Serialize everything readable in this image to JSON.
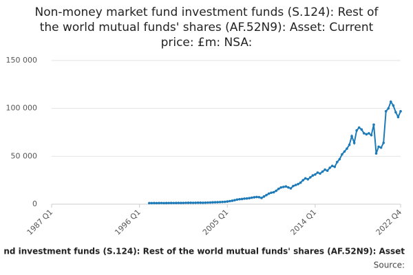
{
  "chart_data": {
    "type": "line",
    "title": [
      "Non-money market fund investment funds (S.124): Rest of",
      "the world mutual funds' shares (AF.52N9): Asset: Current",
      "price: £m: NSA:"
    ],
    "caption": "nd investment funds (S.124): Rest of the world mutual funds' shares (AF.52N9): Asset",
    "source": "Source:",
    "categories": [
      "1987 Q1",
      null,
      null,
      null,
      null,
      null,
      null,
      null,
      null,
      null,
      null,
      null,
      null,
      null,
      null,
      null,
      null,
      null,
      null,
      null,
      null,
      null,
      null,
      null,
      null,
      null,
      null,
      null,
      null,
      null,
      null,
      null,
      null,
      null,
      null,
      null,
      "1996 Q1",
      null,
      null,
      null,
      null,
      null,
      null,
      null,
      null,
      null,
      null,
      null,
      null,
      null,
      null,
      null,
      null,
      null,
      null,
      null,
      null,
      null,
      null,
      null,
      null,
      null,
      null,
      null,
      null,
      null,
      null,
      null,
      null,
      null,
      null,
      null,
      "2005 Q1",
      null,
      null,
      null,
      null,
      null,
      null,
      null,
      null,
      null,
      null,
      null,
      null,
      null,
      null,
      null,
      null,
      null,
      null,
      null,
      null,
      null,
      null,
      null,
      null,
      null,
      null,
      null,
      null,
      null,
      null,
      null,
      null,
      null,
      null,
      null,
      "2014 Q1",
      null,
      null,
      null,
      null,
      null,
      null,
      null,
      null,
      null,
      null,
      null,
      null,
      null,
      null,
      null,
      null,
      null,
      null,
      null,
      null,
      null,
      null,
      null,
      null,
      null,
      null,
      null,
      null,
      null,
      null,
      null,
      null,
      null,
      null,
      "2022 Q4"
    ],
    "series": [
      {
        "name": null,
        "color": "#1d7ab8",
        "values": [
          null,
          null,
          null,
          null,
          null,
          null,
          null,
          null,
          null,
          null,
          null,
          null,
          null,
          null,
          null,
          null,
          null,
          null,
          null,
          null,
          null,
          null,
          null,
          null,
          null,
          null,
          null,
          null,
          null,
          null,
          null,
          null,
          null,
          null,
          null,
          null,
          null,
          null,
          null,
          null,
          1100,
          1150,
          1200,
          1150,
          1200,
          1250,
          1150,
          1200,
          1250,
          1300,
          1250,
          1300,
          1350,
          1300,
          1350,
          1400,
          1450,
          1500,
          1400,
          1500,
          1600,
          1550,
          1500,
          1600,
          1700,
          1800,
          1900,
          2000,
          2100,
          2200,
          2300,
          2500,
          2800,
          3200,
          3600,
          4200,
          4800,
          5200,
          5400,
          5800,
          6000,
          6300,
          6800,
          7200,
          7500,
          7300,
          6500,
          8000,
          9500,
          11000,
          12000,
          12500,
          14000,
          16000,
          17500,
          18000,
          18500,
          17500,
          16500,
          19000,
          20000,
          21000,
          22500,
          25000,
          27000,
          26000,
          28000,
          30000,
          31000,
          33000,
          32000,
          34000,
          36000,
          35000,
          38000,
          40000,
          39000,
          44000,
          47000,
          52000,
          55000,
          58000,
          62000,
          71000,
          64000,
          77000,
          80000,
          78000,
          74000,
          73000,
          74000,
          72000,
          83000,
          53000,
          60000,
          59000,
          64000,
          97000,
          100000,
          107000,
          103000,
          96000,
          91000,
          97000
        ]
      }
    ],
    "ylim": [
      0,
      150000
    ],
    "yticks": [
      0,
      {
        "value": 50000,
        "label": "50 000"
      },
      {
        "value": 100000,
        "label": "100 000"
      },
      {
        "value": 150000,
        "label": "150 000"
      }
    ],
    "grid": true
  }
}
